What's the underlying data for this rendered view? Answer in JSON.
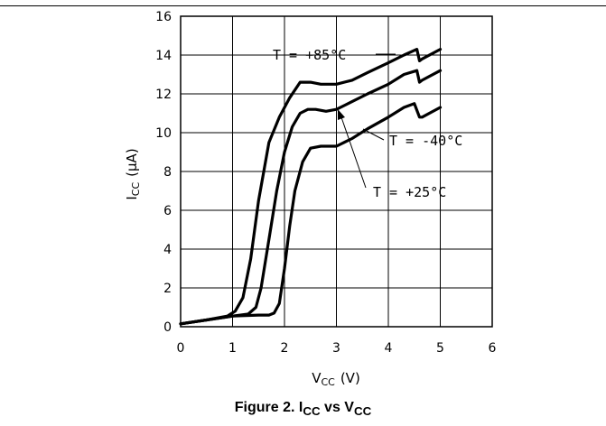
{
  "caption": {
    "prefix": "Figure 2. I",
    "sub1": "CC",
    "mid": " vs V",
    "sub2": "CC"
  },
  "chart_data": {
    "type": "line",
    "title": "",
    "xlabel": {
      "main": "V",
      "sub": "CC",
      "unit": "(V)"
    },
    "ylabel": {
      "main": "I",
      "sub": "CC",
      "unit": "(μA)"
    },
    "xlim": [
      0,
      6
    ],
    "ylim": [
      0,
      16
    ],
    "xticks": [
      0,
      1,
      2,
      3,
      4,
      5,
      6
    ],
    "yticks": [
      0,
      2,
      4,
      6,
      8,
      10,
      12,
      14,
      16
    ],
    "grid": true,
    "series": [
      {
        "name": "T = +85°C",
        "x": [
          0,
          0.5,
          0.9,
          1.05,
          1.2,
          1.35,
          1.5,
          1.7,
          1.9,
          2.1,
          2.3,
          2.5,
          2.7,
          3.0,
          3.3,
          3.6,
          4.0,
          4.3,
          4.55,
          4.6,
          4.65,
          5.0
        ],
        "y": [
          0.15,
          0.35,
          0.55,
          0.8,
          1.5,
          3.5,
          6.5,
          9.5,
          10.8,
          11.8,
          12.6,
          12.6,
          12.5,
          12.5,
          12.7,
          13.1,
          13.6,
          14.0,
          14.3,
          13.7,
          13.8,
          14.3
        ]
      },
      {
        "name": "T = +25°C",
        "x": [
          0,
          0.5,
          1.0,
          1.3,
          1.45,
          1.55,
          1.7,
          1.85,
          2.0,
          2.15,
          2.3,
          2.45,
          2.6,
          2.8,
          3.0,
          3.3,
          3.6,
          4.0,
          4.3,
          4.55,
          4.6,
          4.65,
          5.0
        ],
        "y": [
          0.15,
          0.35,
          0.55,
          0.65,
          1.0,
          2.0,
          4.5,
          7.0,
          9.0,
          10.3,
          11.0,
          11.2,
          11.2,
          11.1,
          11.2,
          11.6,
          12.0,
          12.5,
          13.0,
          13.2,
          12.6,
          12.7,
          13.2
        ]
      },
      {
        "name": "T = -40°C",
        "x": [
          0,
          0.5,
          1.0,
          1.5,
          1.7,
          1.8,
          1.9,
          2.0,
          2.1,
          2.2,
          2.35,
          2.5,
          2.7,
          3.0,
          3.3,
          3.6,
          4.0,
          4.3,
          4.5,
          4.6,
          4.65,
          5.0
        ],
        "y": [
          0.15,
          0.35,
          0.55,
          0.6,
          0.6,
          0.7,
          1.2,
          3.0,
          5.2,
          7.0,
          8.5,
          9.2,
          9.3,
          9.3,
          9.7,
          10.2,
          10.8,
          11.3,
          11.5,
          10.8,
          10.8,
          11.3
        ]
      }
    ],
    "annotations": [
      {
        "text": "T = +85°C",
        "series": "T = +85°C"
      },
      {
        "text": "T = -40°C",
        "series": "T = -40°C"
      },
      {
        "text": "T = +25°C",
        "series": "T = +25°C"
      }
    ]
  }
}
